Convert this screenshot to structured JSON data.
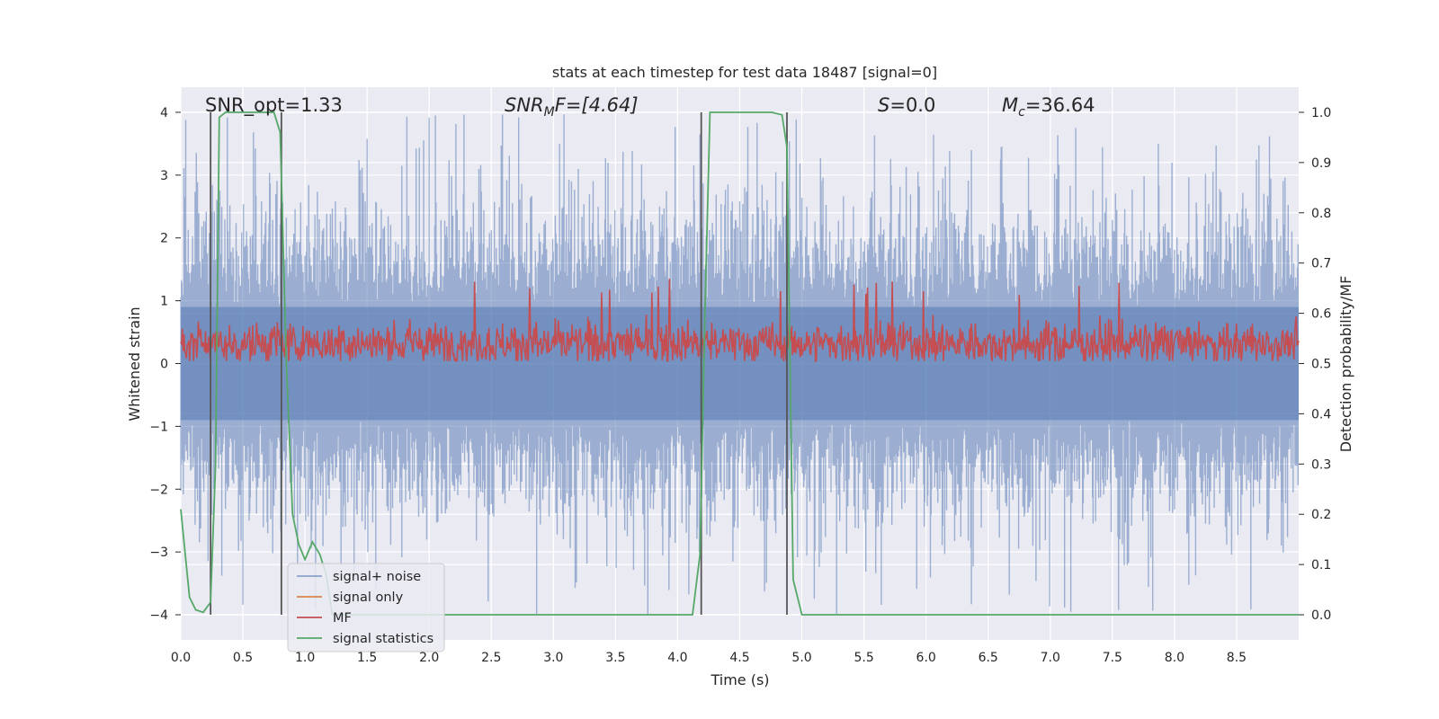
{
  "chart_data": {
    "type": "line",
    "title": "stats at each timestep for test data 18487 [signal=0]",
    "xlabel": "Time (s)",
    "ylabel": "Whitened strain",
    "ylabel_right": "Detection probability/MF",
    "xlim": [
      0.0,
      9.0
    ],
    "ylim": [
      -4.4,
      4.4
    ],
    "ylim_right": [
      -0.05,
      1.05
    ],
    "x_ticks": [
      "0.0",
      "0.5",
      "1.0",
      "1.5",
      "2.0",
      "2.5",
      "3.0",
      "3.5",
      "4.0",
      "4.5",
      "5.0",
      "5.5",
      "6.0",
      "6.5",
      "7.0",
      "7.5",
      "8.0",
      "8.5"
    ],
    "y_ticks": [
      "4",
      "3",
      "2",
      "1",
      "0",
      "−1",
      "−2",
      "−3",
      "−4"
    ],
    "y_ticks_right": [
      "1.0",
      "0.9",
      "0.8",
      "0.7",
      "0.6",
      "0.5",
      "0.4",
      "0.3",
      "0.2",
      "0.1",
      "0.0"
    ],
    "grid": true,
    "legend_position": "lower-left",
    "legend": [
      {
        "name": "signal+ noise",
        "color": "#4c72b0"
      },
      {
        "name": "signal only",
        "color": "#dd8452"
      },
      {
        "name": "MF",
        "color": "#c44e52"
      },
      {
        "name": "signal statistics",
        "color": "#55a868"
      }
    ],
    "annotations": {
      "snr_opt": "SNR_opt=1.33",
      "snr_mf_label": "SNR",
      "snr_mf_sub": "M",
      "snr_mf_value": "F=[4.64]",
      "s_label": "S",
      "s_value": "=0.0",
      "mc_label": "M",
      "mc_sub": "c",
      "mc_value": "=36.64"
    },
    "series": [
      {
        "name": "signal+ noise",
        "axis": "left",
        "style": "noise",
        "x_range": [
          0.0,
          9.0
        ],
        "y_amplitude": 4.0,
        "color": "#4c72b0"
      },
      {
        "name": "MF",
        "axis": "right",
        "style": "noise",
        "x_range": [
          0.0,
          9.0
        ],
        "y_mean": 0.54,
        "y_spread": 0.05,
        "color": "#c44e52"
      },
      {
        "name": "signal statistics",
        "axis": "right",
        "color": "#55a868",
        "x": [
          0.0,
          0.07,
          0.12,
          0.18,
          0.24,
          0.28,
          0.31,
          0.36,
          0.45,
          0.55,
          0.65,
          0.75,
          0.8,
          0.85,
          0.9,
          0.95,
          1.0,
          1.06,
          1.12,
          1.17,
          1.22,
          1.5,
          2.0,
          3.0,
          4.0,
          4.12,
          4.18,
          4.22,
          4.26,
          4.4,
          4.6,
          4.76,
          4.84,
          4.88,
          4.93,
          5.0,
          5.05,
          5.2,
          6.0,
          7.0,
          8.0,
          9.0
        ],
        "y": [
          0.21,
          0.035,
          0.01,
          0.005,
          0.025,
          0.3,
          0.99,
          1.0,
          1.0,
          1.0,
          1.0,
          1.0,
          0.96,
          0.5,
          0.2,
          0.14,
          0.11,
          0.145,
          0.12,
          0.08,
          0.0,
          0.0,
          0.0,
          0.0,
          0.0,
          0.0,
          0.12,
          0.6,
          1.0,
          1.0,
          1.0,
          1.0,
          0.995,
          0.93,
          0.07,
          0.0,
          0.0,
          0.0,
          0.0,
          0.0,
          0.0,
          0.0
        ]
      }
    ],
    "vertical_lines_x": [
      0.24,
      0.81,
      4.19,
      4.88
    ]
  }
}
